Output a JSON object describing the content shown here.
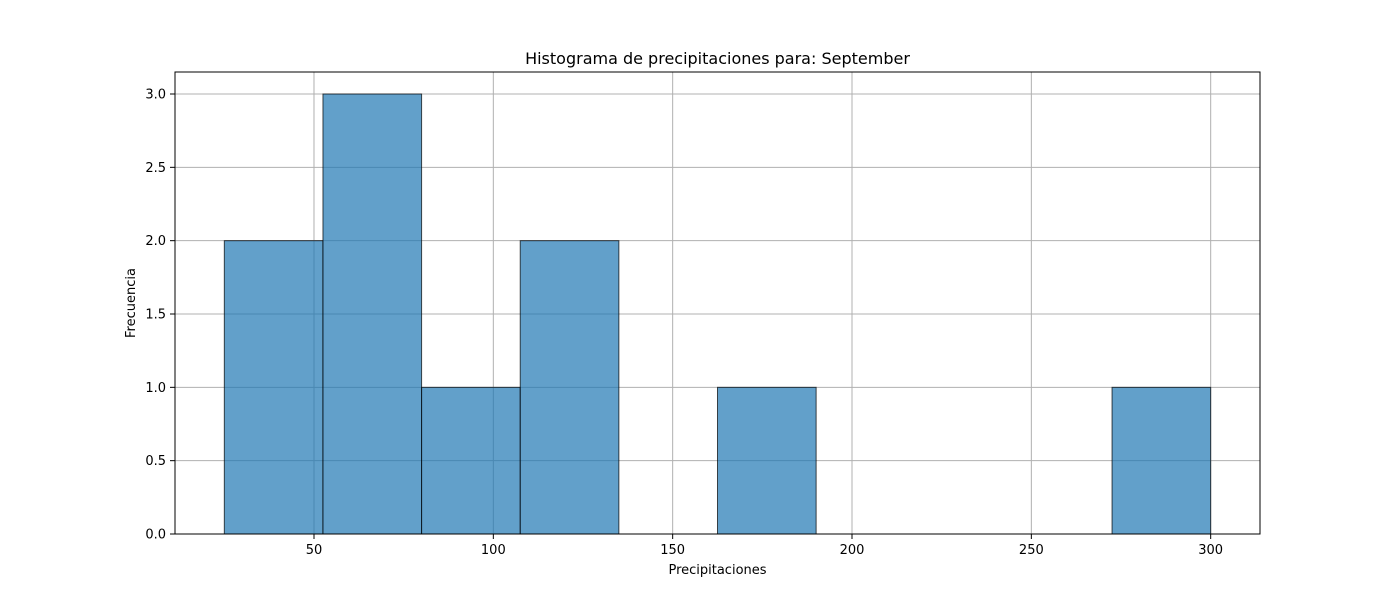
{
  "chart_data": {
    "type": "bar",
    "title": "Histograma de precipitaciones para: September",
    "xlabel": "Precipitaciones",
    "ylabel": "Frecuencia",
    "bins": [
      {
        "start": 25.0,
        "end": 52.5,
        "count": 2
      },
      {
        "start": 52.5,
        "end": 80.0,
        "count": 3
      },
      {
        "start": 80.0,
        "end": 107.5,
        "count": 1
      },
      {
        "start": 107.5,
        "end": 135.0,
        "count": 2
      },
      {
        "start": 135.0,
        "end": 162.5,
        "count": 0
      },
      {
        "start": 162.5,
        "end": 190.0,
        "count": 1
      },
      {
        "start": 190.0,
        "end": 217.5,
        "count": 0
      },
      {
        "start": 217.5,
        "end": 245.0,
        "count": 0
      },
      {
        "start": 245.0,
        "end": 272.5,
        "count": 0
      },
      {
        "start": 272.5,
        "end": 300.0,
        "count": 1
      }
    ],
    "xlim": [
      11.25,
      313.75
    ],
    "ylim": [
      0,
      3.15
    ],
    "xticks": [
      50,
      100,
      150,
      200,
      250,
      300
    ],
    "xtick_labels": [
      "50",
      "100",
      "150",
      "200",
      "250",
      "300"
    ],
    "yticks": [
      0,
      0.5,
      1.0,
      1.5,
      2.0,
      2.5,
      3.0
    ],
    "ytick_labels": [
      "0.0",
      "0.5",
      "1.0",
      "1.5",
      "2.0",
      "2.5",
      "3.0"
    ],
    "grid": true,
    "colors": {
      "bar_fill": "#1f77b4",
      "bar_opacity": 0.7,
      "bar_edge": "#000000",
      "grid": "#b0b0b0",
      "axes": "#000000"
    }
  }
}
